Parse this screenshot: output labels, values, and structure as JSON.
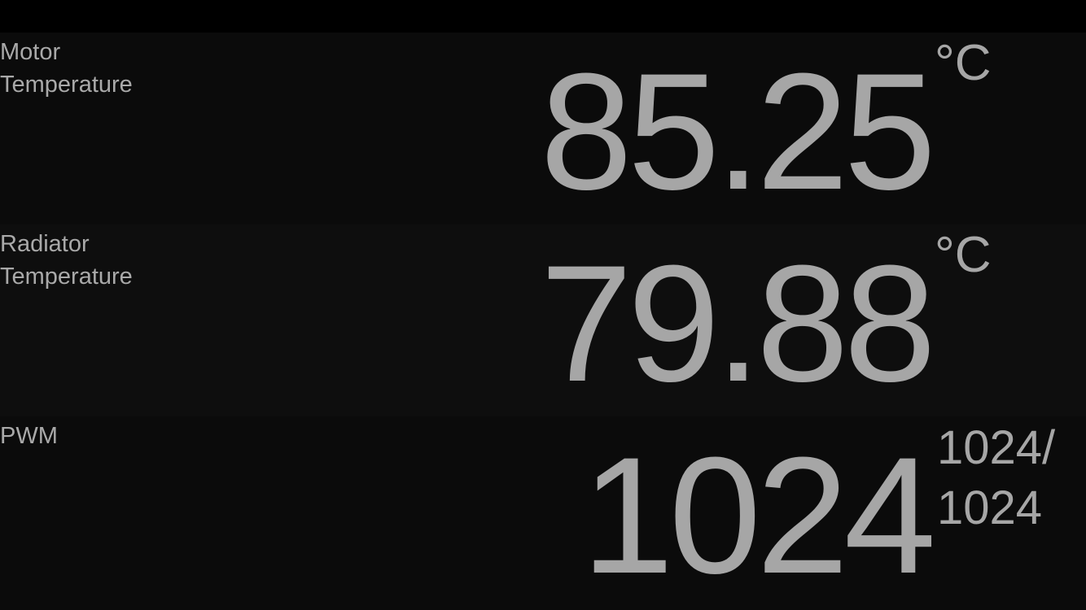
{
  "readouts": [
    {
      "label_line1": "Motor",
      "label_line2": "Temperature",
      "value": "85.25",
      "unit": "°C"
    },
    {
      "label_line1": "Radiator",
      "label_line2": "Temperature",
      "value": "79.88",
      "unit": "°C"
    },
    {
      "label_line1": "PWM",
      "value": "1024",
      "unit_line1": "1024/",
      "unit_line2": "1024"
    }
  ],
  "colors": {
    "background": "#000000",
    "panel_dark": "#0b0b0b",
    "panel_light": "#0e0e0e",
    "text": "#a6a6a6"
  }
}
